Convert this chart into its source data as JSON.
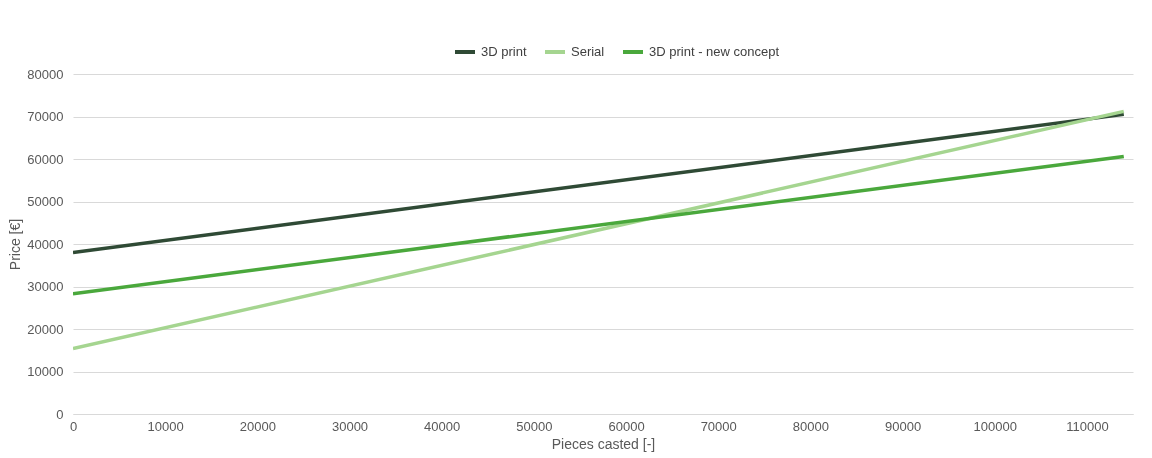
{
  "chart_data": {
    "type": "line",
    "xlabel": "Pieces casted [-]",
    "ylabel": "Price [€]",
    "xlim": [
      0,
      115000
    ],
    "xticks": [
      0,
      10000,
      20000,
      30000,
      40000,
      50000,
      60000,
      70000,
      80000,
      90000,
      100000,
      110000
    ],
    "ylim": [
      0,
      80000
    ],
    "yticks": [
      0,
      10000,
      20000,
      30000,
      40000,
      50000,
      60000,
      70000,
      80000
    ],
    "x": [
      0,
      114000
    ],
    "grid": "y",
    "legend": "top",
    "marker": "none",
    "line_style": "solid",
    "series": [
      {
        "name": "3D print",
        "color": "#2f4a35",
        "values": [
          38000,
          70500
        ]
      },
      {
        "name": "Serial",
        "color": "#a5d590",
        "values": [
          15400,
          71200
        ]
      },
      {
        "name": "3D print - new concept",
        "color": "#4aa83c",
        "values": [
          28300,
          60600
        ]
      }
    ]
  }
}
